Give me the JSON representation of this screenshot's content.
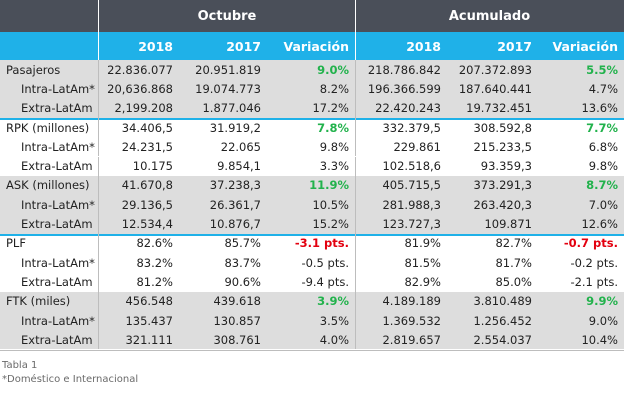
{
  "header": {
    "group1": "Octubre",
    "group2": "Acumulado",
    "columns": [
      "2018",
      "2017",
      "Variación",
      "2018",
      "2017",
      "Variación"
    ]
  },
  "colors": {
    "header_dark": "#4a4f59",
    "header_accent": "#1fb1e8",
    "band": "#dddddd",
    "positive": "#22b24c",
    "negative": "#e3000f"
  },
  "groups": [
    {
      "rows": [
        {
          "label": "Pasajeros",
          "values": [
            "22.836.077",
            "20.951.819",
            "9.0%",
            "218.786.842",
            "207.372.893",
            "5.5%"
          ]
        },
        {
          "label": "Intra-LatAm*",
          "values": [
            "20,636.868",
            "19.074.773",
            "8.2%",
            "196.366.599",
            "187.640.441",
            "4.7%"
          ]
        },
        {
          "label": "Extra-LatAm",
          "values": [
            "2,199.208",
            "1.877.046",
            "17.2%",
            "22.420.243",
            "19.732.451",
            "13.6%"
          ]
        }
      ]
    },
    {
      "rows": [
        {
          "label": "RPK (millones)",
          "values": [
            "34.406,5",
            "31.919,2",
            "7.8%",
            "332.379,5",
            "308.592,8",
            "7.7%"
          ]
        },
        {
          "label": "Intra-LatAm*",
          "values": [
            "24.231,5",
            "22.065",
            "9.8%",
            "229.861",
            "215.233,5",
            "6.8%"
          ]
        },
        {
          "label": "Extra-LatAm",
          "values": [
            "10.175",
            "9.854,1",
            "3.3%",
            "102.518,6",
            "93.359,3",
            "9.8%"
          ]
        }
      ]
    },
    {
      "rows": [
        {
          "label": "ASK (millones)",
          "values": [
            "41.670,8",
            "37.238,3",
            "11.9%",
            "405.715,5",
            "373.291,3",
            "8.7%"
          ]
        },
        {
          "label": "Intra-LatAm*",
          "values": [
            "29.136,5",
            "26.361,7",
            "10.5%",
            "281.988,3",
            "263.420,3",
            "7.0%"
          ]
        },
        {
          "label": "Extra-LatAm",
          "values": [
            "12.534,4",
            "10.876,7",
            "15.2%",
            "123.727,3",
            "109.871",
            "12.6%"
          ]
        }
      ]
    },
    {
      "rows": [
        {
          "label": "PLF",
          "values": [
            "82.6%",
            "85.7%",
            "-3.1 pts.",
            "81.9%",
            "82.7%",
            "-0.7 pts."
          ]
        },
        {
          "label": "Intra-LatAm*",
          "values": [
            "83.2%",
            "83.7%",
            "-0.5 pts.",
            "81.5%",
            "81.7%",
            "-0.2 pts."
          ]
        },
        {
          "label": "Extra-LatAm",
          "values": [
            "81.2%",
            "90.6%",
            "-9.4 pts.",
            "82.9%",
            "85.0%",
            "-2.1 pts."
          ]
        }
      ]
    },
    {
      "rows": [
        {
          "label": "FTK (miles)",
          "values": [
            "456.548",
            "439.618",
            "3.9%",
            "4.189.189",
            "3.810.489",
            "9.9%"
          ]
        },
        {
          "label": "Intra-LatAm*",
          "values": [
            "135.437",
            "130.857",
            "3.5%",
            "1.369.532",
            "1.256.452",
            "9.0%"
          ]
        },
        {
          "label": "Extra-LatAm",
          "values": [
            "321.111",
            "308.761",
            "4.0%",
            "2.819.657",
            "2.554.037",
            "10.4%"
          ]
        }
      ]
    }
  ],
  "caption": {
    "line1": "Tabla 1",
    "line2": "*Doméstico e Internacional"
  }
}
